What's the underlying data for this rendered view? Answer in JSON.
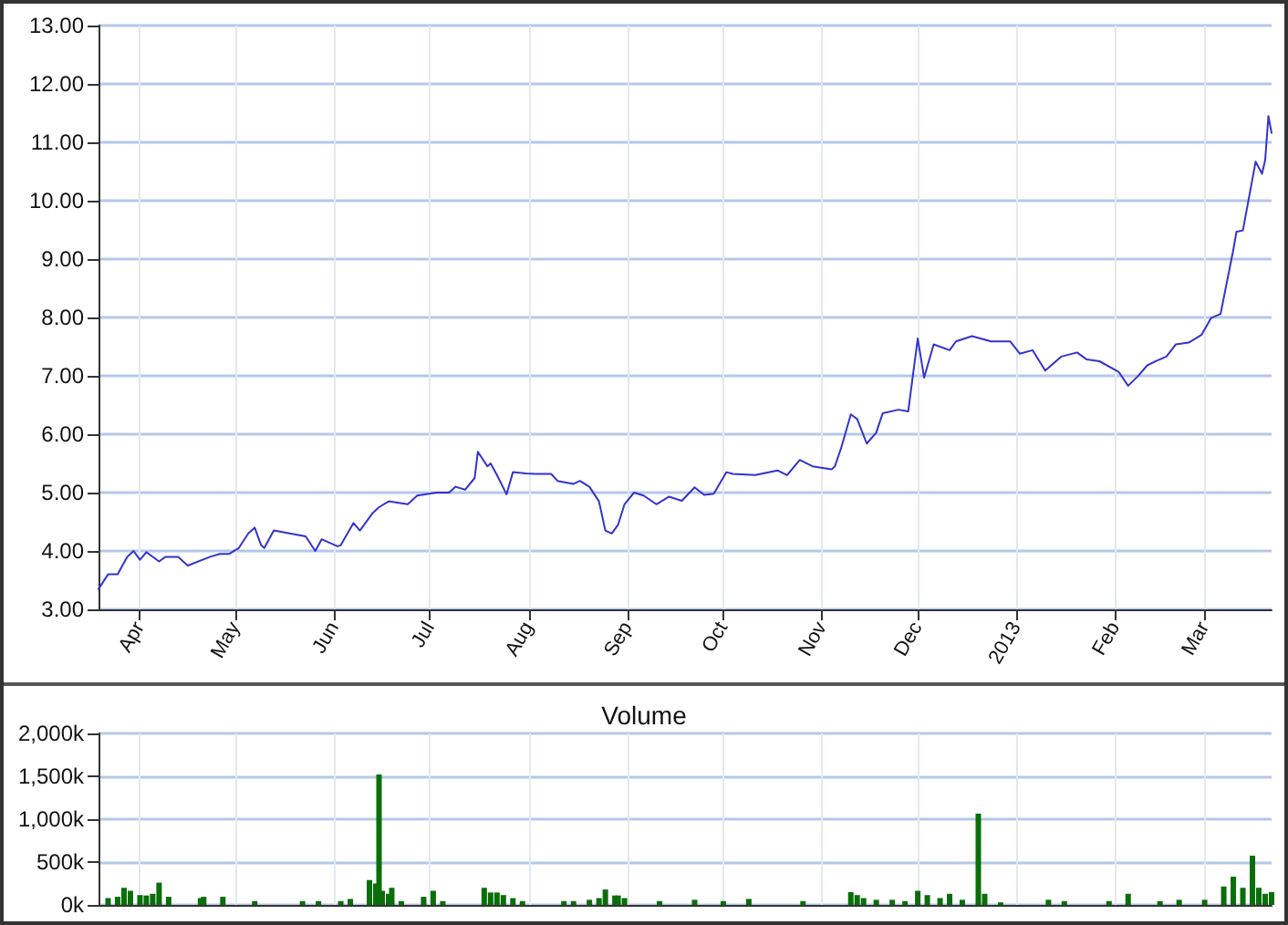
{
  "chart_data": [
    {
      "type": "line",
      "xlim": [
        "2012-03-19",
        "2013-03-22"
      ],
      "ylim": [
        3,
        13
      ],
      "xticks": [
        {
          "value": "2012-04-01",
          "label": "Apr"
        },
        {
          "value": "2012-05-01",
          "label": "May"
        },
        {
          "value": "2012-06-01",
          "label": "Jun"
        },
        {
          "value": "2012-07-01",
          "label": "Jul"
        },
        {
          "value": "2012-08-01",
          "label": "Aug"
        },
        {
          "value": "2012-09-01",
          "label": "Sep"
        },
        {
          "value": "2012-10-01",
          "label": "Oct"
        },
        {
          "value": "2012-11-01",
          "label": "Nov"
        },
        {
          "value": "2012-12-01",
          "label": "Dec"
        },
        {
          "value": "2013-01-01",
          "label": "2013"
        },
        {
          "value": "2013-02-01",
          "label": "Feb"
        },
        {
          "value": "2013-03-01",
          "label": "Mar"
        }
      ],
      "yticks": [
        {
          "value": 3,
          "label": "3.00"
        },
        {
          "value": 4,
          "label": "4.00"
        },
        {
          "value": 5,
          "label": "5.00"
        },
        {
          "value": 6,
          "label": "6.00"
        },
        {
          "value": 7,
          "label": "7.00"
        },
        {
          "value": 8,
          "label": "8.00"
        },
        {
          "value": 9,
          "label": "9.00"
        },
        {
          "value": 10,
          "label": "10.00"
        },
        {
          "value": 11,
          "label": "11.00"
        },
        {
          "value": 12,
          "label": "12.00"
        },
        {
          "value": 13,
          "label": "13.00"
        }
      ],
      "grid": true,
      "marker": "none",
      "line_style": "solid",
      "x": [
        "2012-03-19",
        "2012-03-22",
        "2012-03-25",
        "2012-03-28",
        "2012-03-30",
        "2012-04-01",
        "2012-04-03",
        "2012-04-07",
        "2012-04-09",
        "2012-04-13",
        "2012-04-16",
        "2012-04-23",
        "2012-04-26",
        "2012-04-29",
        "2012-05-02",
        "2012-05-05",
        "2012-05-07",
        "2012-05-09",
        "2012-05-10",
        "2012-05-13",
        "2012-05-18",
        "2012-05-23",
        "2012-05-26",
        "2012-05-28",
        "2012-06-02",
        "2012-06-03",
        "2012-06-07",
        "2012-06-09",
        "2012-06-13",
        "2012-06-15",
        "2012-06-18",
        "2012-06-24",
        "2012-06-27",
        "2012-07-03",
        "2012-07-07",
        "2012-07-09",
        "2012-07-12",
        "2012-07-15",
        "2012-07-16",
        "2012-07-19",
        "2012-07-20",
        "2012-07-22",
        "2012-07-25",
        "2012-07-27",
        "2012-07-31",
        "2012-08-03",
        "2012-08-08",
        "2012-08-10",
        "2012-08-15",
        "2012-08-17",
        "2012-08-20",
        "2012-08-23",
        "2012-08-25",
        "2012-08-27",
        "2012-08-29",
        "2012-08-31",
        "2012-09-03",
        "2012-09-06",
        "2012-09-10",
        "2012-09-14",
        "2012-09-18",
        "2012-09-22",
        "2012-09-25",
        "2012-09-28",
        "2012-10-02",
        "2012-10-04",
        "2012-10-11",
        "2012-10-18",
        "2012-10-21",
        "2012-10-25",
        "2012-10-29",
        "2012-11-04",
        "2012-11-05",
        "2012-11-07",
        "2012-11-10",
        "2012-11-12",
        "2012-11-15",
        "2012-11-18",
        "2012-11-20",
        "2012-11-25",
        "2012-11-28",
        "2012-12-01",
        "2012-12-03",
        "2012-12-06",
        "2012-12-11",
        "2012-12-13",
        "2012-12-18",
        "2012-12-24",
        "2012-12-30",
        "2013-01-02",
        "2013-01-06",
        "2013-01-10",
        "2013-01-15",
        "2013-01-20",
        "2013-01-23",
        "2013-01-27",
        "2013-02-02",
        "2013-02-05",
        "2013-02-08",
        "2013-02-11",
        "2013-02-14",
        "2013-02-17",
        "2013-02-20",
        "2013-02-24",
        "2013-02-28",
        "2013-03-03",
        "2013-03-06",
        "2013-03-10",
        "2013-03-11",
        "2013-03-13",
        "2013-03-17",
        "2013-03-19",
        "2013-03-20",
        "2013-03-21",
        "2013-03-22"
      ],
      "series": [
        {
          "color": "#3333cc",
          "values": [
            3.35,
            3.6,
            3.6,
            3.9,
            4.0,
            3.85,
            3.98,
            3.82,
            3.9,
            3.9,
            3.75,
            3.9,
            3.95,
            3.95,
            4.05,
            4.3,
            4.4,
            4.1,
            4.05,
            4.35,
            4.3,
            4.25,
            4.0,
            4.2,
            4.08,
            4.1,
            4.48,
            4.35,
            4.65,
            4.75,
            4.85,
            4.8,
            4.95,
            5.0,
            5.0,
            5.1,
            5.05,
            5.25,
            5.7,
            5.45,
            5.5,
            5.3,
            4.97,
            5.35,
            5.33,
            5.32,
            5.32,
            5.2,
            5.15,
            5.2,
            5.1,
            4.85,
            4.35,
            4.3,
            4.45,
            4.8,
            5.0,
            4.95,
            4.8,
            4.93,
            4.86,
            5.09,
            4.96,
            4.98,
            5.35,
            5.32,
            5.3,
            5.38,
            5.3,
            5.56,
            5.45,
            5.4,
            5.45,
            5.77,
            6.34,
            6.26,
            5.84,
            6.03,
            6.36,
            6.42,
            6.39,
            7.64,
            6.97,
            7.54,
            7.44,
            7.59,
            7.68,
            7.59,
            7.59,
            7.38,
            7.44,
            7.09,
            7.33,
            7.4,
            7.28,
            7.25,
            7.07,
            6.83,
            6.99,
            7.18,
            7.26,
            7.33,
            7.54,
            7.57,
            7.7,
            7.99,
            8.06,
            9.16,
            9.47,
            9.49,
            10.67,
            10.46,
            10.7,
            11.45,
            11.16
          ]
        }
      ]
    },
    {
      "type": "bar",
      "title": "Volume",
      "xlim": [
        "2012-03-19",
        "2013-03-22"
      ],
      "ylim": [
        0,
        2000
      ],
      "xticks": [
        {
          "value": "2012-04-01",
          "label": null
        },
        {
          "value": "2012-05-01",
          "label": null
        },
        {
          "value": "2012-06-01",
          "label": null
        },
        {
          "value": "2012-07-01",
          "label": null
        },
        {
          "value": "2012-08-01",
          "label": null
        },
        {
          "value": "2012-09-01",
          "label": null
        },
        {
          "value": "2012-10-01",
          "label": null
        },
        {
          "value": "2012-11-01",
          "label": null
        },
        {
          "value": "2012-12-01",
          "label": null
        },
        {
          "value": "2013-01-01",
          "label": null
        },
        {
          "value": "2013-02-01",
          "label": null
        },
        {
          "value": "2013-03-01",
          "label": null
        }
      ],
      "yticks": [
        {
          "value": 0,
          "label": "0k"
        },
        {
          "value": 500,
          "label": "500k"
        },
        {
          "value": 1000,
          "label": "1,000k"
        },
        {
          "value": 1500,
          "label": "1,500k"
        },
        {
          "value": 2000,
          "label": "2,000k"
        }
      ],
      "grid": true,
      "tick_labels": "y",
      "x": [
        "2012-03-22",
        "2012-03-25",
        "2012-03-27",
        "2012-03-29",
        "2012-04-01",
        "2012-04-03",
        "2012-04-05",
        "2012-04-07",
        "2012-04-10",
        "2012-04-20",
        "2012-04-21",
        "2012-04-27",
        "2012-05-07",
        "2012-05-22",
        "2012-05-27",
        "2012-06-03",
        "2012-06-06",
        "2012-06-12",
        "2012-06-14",
        "2012-06-15",
        "2012-06-16",
        "2012-06-18",
        "2012-06-19",
        "2012-06-22",
        "2012-06-29",
        "2012-07-02",
        "2012-07-05",
        "2012-07-18",
        "2012-07-20",
        "2012-07-22",
        "2012-07-24",
        "2012-07-27",
        "2012-07-30",
        "2012-08-12",
        "2012-08-15",
        "2012-08-20",
        "2012-08-23",
        "2012-08-25",
        "2012-08-28",
        "2012-08-29",
        "2012-08-31",
        "2012-09-11",
        "2012-09-22",
        "2012-10-01",
        "2012-10-09",
        "2012-10-26",
        "2012-11-10",
        "2012-11-12",
        "2012-11-14",
        "2012-11-18",
        "2012-11-23",
        "2012-11-27",
        "2012-12-01",
        "2012-12-04",
        "2012-12-08",
        "2012-12-11",
        "2012-12-15",
        "2012-12-20",
        "2012-12-22",
        "2012-12-27",
        "2013-01-11",
        "2013-01-16",
        "2013-01-30",
        "2013-02-05",
        "2013-02-15",
        "2013-02-21",
        "2013-03-01",
        "2013-03-07",
        "2013-03-10",
        "2013-03-13",
        "2013-03-16",
        "2013-03-18",
        "2013-03-20",
        "2013-03-22"
      ],
      "series": [
        {
          "color": "#0a6e0a",
          "values": [
            80,
            95,
            200,
            165,
            115,
            110,
            130,
            260,
            95,
            80,
            95,
            95,
            45,
            45,
            45,
            45,
            70,
            290,
            250,
            1520,
            165,
            130,
            200,
            45,
            95,
            165,
            45,
            200,
            145,
            145,
            115,
            80,
            45,
            45,
            45,
            60,
            80,
            180,
            110,
            110,
            80,
            45,
            60,
            45,
            70,
            45,
            150,
            115,
            80,
            60,
            60,
            45,
            165,
            115,
            80,
            130,
            60,
            1065,
            130,
            30,
            60,
            45,
            45,
            130,
            45,
            60,
            60,
            215,
            330,
            200,
            575,
            200,
            130,
            150
          ]
        }
      ]
    }
  ]
}
